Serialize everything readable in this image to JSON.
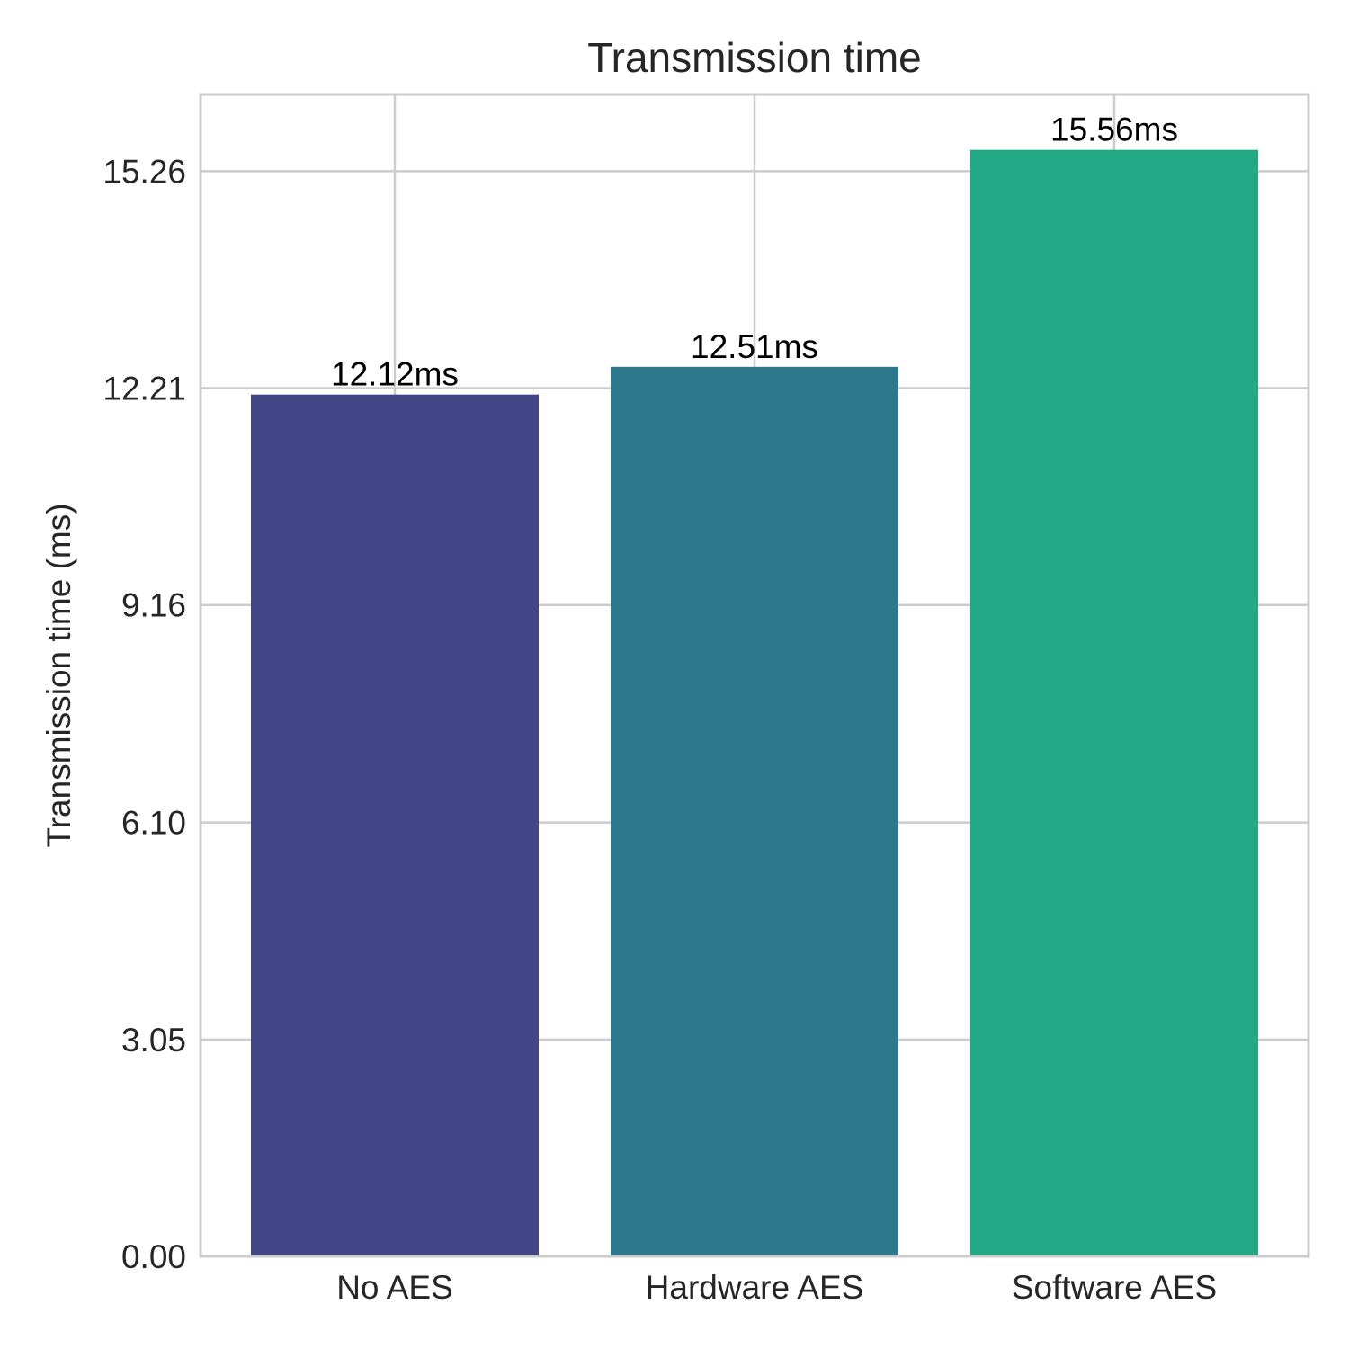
{
  "chart_data": {
    "type": "bar",
    "title": "Transmission time",
    "xlabel": "",
    "ylabel": "Transmission time (ms)",
    "categories": [
      "No AES",
      "Hardware AES",
      "Software AES"
    ],
    "values": [
      12.12,
      12.51,
      15.56
    ],
    "value_labels": [
      "12.12ms",
      "12.51ms",
      "15.56ms"
    ],
    "colors": [
      "#424686",
      "#2c788c",
      "#22a884"
    ],
    "yticks": [
      0.0,
      3.05,
      6.1,
      9.16,
      12.21,
      15.26
    ],
    "ytick_labels": [
      "0.00",
      "3.05",
      "6.10",
      "9.16",
      "12.21",
      "15.26"
    ],
    "ylim": [
      0,
      16.34
    ],
    "grid": true,
    "legend": "none"
  }
}
